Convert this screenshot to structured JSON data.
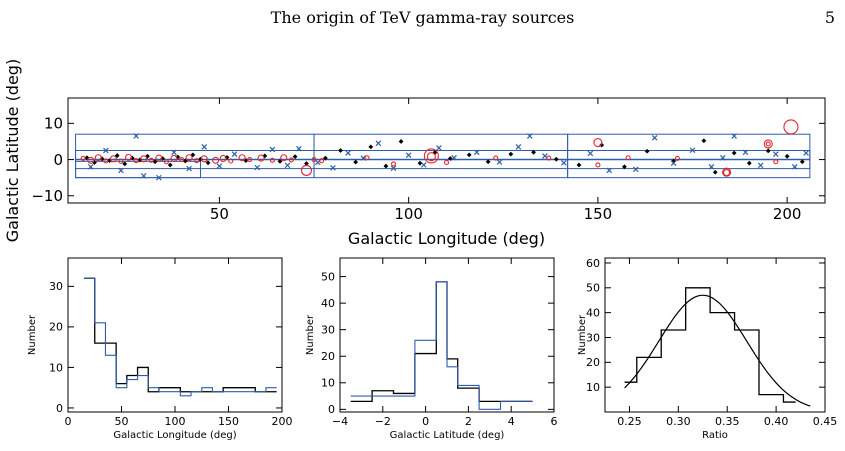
{
  "header": {
    "running_title": "The origin of TeV gamma-ray sources",
    "page_number": "5"
  },
  "colors": {
    "known": "#000000",
    "blue": "#2f5ea8",
    "red": "#e0262e",
    "frame": "#2f5ea8"
  },
  "chart_data": [
    {
      "type": "scatter",
      "xlabel": "Galactic Longitude (deg)",
      "ylabel": "Galactic Latitude (deg)",
      "xlim": [
        10,
        210
      ],
      "ylim": [
        -12,
        17
      ],
      "xticks": [
        50,
        100,
        150,
        200
      ],
      "yticks": [
        -10,
        0,
        10
      ],
      "survey_boxes": [
        {
          "l": [
            12,
            75
          ],
          "b": [
            -5,
            7
          ]
        },
        {
          "l": [
            75,
            142
          ],
          "b": [
            -5,
            7
          ]
        },
        {
          "l": [
            142,
            206
          ],
          "b": [
            -5,
            7
          ]
        },
        {
          "l": [
            12,
            45
          ],
          "b": [
            -5,
            -0.5
          ]
        },
        {
          "l": [
            12,
            206
          ],
          "b": [
            -2.5,
            2.5
          ]
        }
      ],
      "series": [
        {
          "marker": "diamond",
          "color": "#000000",
          "points": [
            [
              15,
              0.5
            ],
            [
              17,
              -0.8
            ],
            [
              19,
              0.2
            ],
            [
              21,
              -0.3
            ],
            [
              23,
              1.1
            ],
            [
              25,
              -1.2
            ],
            [
              27,
              0.4
            ],
            [
              29,
              -0.1
            ],
            [
              31,
              0.9
            ],
            [
              33,
              -0.6
            ],
            [
              35,
              0.3
            ],
            [
              37,
              -1.5
            ],
            [
              39,
              0.7
            ],
            [
              41,
              -0.4
            ],
            [
              43,
              1.3
            ],
            [
              45,
              0.1
            ],
            [
              47,
              -0.9
            ],
            [
              52,
              0.6
            ],
            [
              57,
              -0.3
            ],
            [
              62,
              1.0
            ],
            [
              66,
              -0.5
            ],
            [
              70,
              0.8
            ],
            [
              73,
              -1.1
            ],
            [
              78,
              0.4
            ],
            [
              82,
              2.5
            ],
            [
              86,
              -0.7
            ],
            [
              90,
              3.5
            ],
            [
              94,
              -1.8
            ],
            [
              98,
              5.0
            ],
            [
              103,
              -1.0
            ],
            [
              107,
              2.0
            ],
            [
              111,
              0.3
            ],
            [
              116,
              1.3
            ],
            [
              121,
              -0.6
            ],
            [
              127,
              1.5
            ],
            [
              133,
              2.0
            ],
            [
              139,
              0.1
            ],
            [
              145,
              -1.5
            ],
            [
              151,
              4.0
            ],
            [
              157,
              -2.0
            ],
            [
              163,
              2.3
            ],
            [
              170,
              -0.4
            ],
            [
              178,
              5.2
            ],
            [
              181,
              -3.5
            ],
            [
              186,
              1.8
            ],
            [
              190,
              -1.0
            ],
            [
              195,
              2.4
            ],
            [
              200,
              0.9
            ],
            [
              204,
              -0.6
            ]
          ]
        },
        {
          "marker": "cross",
          "color": "#2f5ea8",
          "points": [
            [
              16,
              -2.0
            ],
            [
              20,
              2.5
            ],
            [
              24,
              -3.0
            ],
            [
              28,
              6.5
            ],
            [
              30,
              -4.5
            ],
            [
              34,
              -5.0
            ],
            [
              38,
              2.0
            ],
            [
              42,
              -2.5
            ],
            [
              46,
              3.5
            ],
            [
              50,
              -1.8
            ],
            [
              54,
              1.5
            ],
            [
              60,
              -2.2
            ],
            [
              64,
              2.8
            ],
            [
              68,
              -1.6
            ],
            [
              71,
              3.0
            ],
            [
              76,
              -0.8
            ],
            [
              80,
              -2.3
            ],
            [
              84,
              1.8
            ],
            [
              88,
              0.4
            ],
            [
              92,
              4.5
            ],
            [
              96,
              -2.4
            ],
            [
              100,
              1.2
            ],
            [
              104,
              -1.5
            ],
            [
              108,
              3.2
            ],
            [
              112,
              0.5
            ],
            [
              118,
              2.0
            ],
            [
              124,
              -0.7
            ],
            [
              129,
              3.5
            ],
            [
              132,
              6.5
            ],
            [
              136,
              1.0
            ],
            [
              141,
              -0.9
            ],
            [
              148,
              1.7
            ],
            [
              153,
              -3.0
            ],
            [
              160,
              -2.7
            ],
            [
              165,
              6.0
            ],
            [
              170,
              -1.0
            ],
            [
              175,
              2.6
            ],
            [
              180,
              -2.0
            ],
            [
              183,
              0.5
            ],
            [
              186,
              6.5
            ],
            [
              189,
              2.0
            ],
            [
              193,
              -1.6
            ],
            [
              197,
              1.5
            ],
            [
              202,
              -2.0
            ],
            [
              205,
              1.8
            ]
          ]
        },
        {
          "marker": "open-circle",
          "color": "#e0262e",
          "points": [
            [
              14,
              0.3,
              2
            ],
            [
              16,
              -0.2,
              3
            ],
            [
              18,
              0.5,
              3
            ],
            [
              20,
              -0.4,
              2
            ],
            [
              22,
              0.2,
              3
            ],
            [
              24,
              -0.5,
              2
            ],
            [
              26,
              0.6,
              3
            ],
            [
              28,
              -0.3,
              2
            ],
            [
              30,
              0.2,
              3
            ],
            [
              32,
              -0.2,
              2
            ],
            [
              34,
              0.4,
              3
            ],
            [
              36,
              -0.6,
              2
            ],
            [
              38,
              0.3,
              3
            ],
            [
              40,
              0.0,
              2
            ],
            [
              42,
              0.5,
              3
            ],
            [
              44,
              -0.3,
              2
            ],
            [
              46,
              0.2,
              3
            ],
            [
              49,
              -0.2,
              3
            ],
            [
              51,
              0.3,
              3
            ],
            [
              53,
              -0.4,
              2
            ],
            [
              56,
              0.5,
              3
            ],
            [
              58,
              0.0,
              2
            ],
            [
              61,
              0.4,
              3
            ],
            [
              64,
              -0.2,
              2
            ],
            [
              67,
              0.5,
              3
            ],
            [
              69,
              -0.1,
              2
            ],
            [
              73,
              -3.0,
              5
            ],
            [
              75,
              0.0,
              2
            ],
            [
              77,
              -0.3,
              2
            ],
            [
              89,
              0.5,
              2
            ],
            [
              96,
              -1.2,
              2
            ],
            [
              106,
              1.0,
              7
            ],
            [
              106,
              0.8,
              4
            ],
            [
              110,
              -0.8,
              2
            ],
            [
              123,
              0.4,
              2
            ],
            [
              137,
              0.4,
              2
            ],
            [
              150,
              4.7,
              4
            ],
            [
              150,
              -1.5,
              2
            ],
            [
              158,
              0.5,
              2
            ],
            [
              171,
              0.3,
              2
            ],
            [
              184,
              -3.5,
              4
            ],
            [
              184,
              -3.6,
              3
            ],
            [
              195,
              4.3,
              4
            ],
            [
              195,
              4.3,
              2
            ],
            [
              197,
              -0.6,
              2
            ],
            [
              201,
              9.0,
              7
            ]
          ]
        }
      ]
    },
    {
      "type": "histogram",
      "xlabel": "Galactic Longitude (deg)",
      "ylabel": "Number",
      "xlim": [
        0,
        200
      ],
      "ylim": [
        -1,
        37
      ],
      "xticks": [
        0,
        50,
        100,
        150,
        200
      ],
      "yticks": [
        0,
        10,
        20,
        30
      ],
      "series": [
        {
          "color": "#000000",
          "edges": [
            15,
            25,
            35,
            45,
            55,
            65,
            75,
            85,
            95,
            105,
            115,
            125,
            135,
            145,
            155,
            165,
            175,
            185,
            195
          ],
          "counts": [
            32,
            16,
            16,
            6,
            8,
            10,
            4,
            5,
            5,
            4,
            4,
            4,
            4,
            5,
            5,
            5,
            4,
            4
          ]
        },
        {
          "color": "#2f5ea8",
          "edges": [
            15,
            25,
            35,
            45,
            55,
            65,
            75,
            85,
            95,
            105,
            115,
            125,
            135,
            145,
            155,
            165,
            175,
            185,
            195
          ],
          "counts": [
            32,
            21,
            13,
            5,
            7,
            8,
            5,
            4,
            4,
            3,
            4,
            5,
            4,
            4,
            4,
            4,
            4,
            5
          ]
        }
      ]
    },
    {
      "type": "histogram",
      "xlabel": "Galactic Latitude (deg)",
      "ylabel": "Number",
      "xlim": [
        -4,
        6
      ],
      "ylim": [
        -1,
        57
      ],
      "xticks": [
        -4,
        -2,
        0,
        2,
        4,
        6
      ],
      "yticks": [
        0,
        10,
        20,
        30,
        40,
        50
      ],
      "series": [
        {
          "color": "#000000",
          "edges": [
            -3.5,
            -2.5,
            -1.5,
            -0.5,
            0.5,
            1.0,
            1.5,
            2.5,
            3.5,
            5.0
          ],
          "counts": [
            3,
            7,
            6,
            21,
            48,
            19,
            8,
            3,
            3
          ]
        },
        {
          "color": "#2f5ea8",
          "edges": [
            -3.5,
            -2.5,
            -1.5,
            -0.5,
            0.5,
            1.0,
            1.5,
            2.5,
            3.5,
            5.0
          ],
          "counts": [
            5,
            5,
            5,
            26,
            48,
            16,
            9,
            0,
            3
          ]
        }
      ]
    },
    {
      "type": "histogram",
      "xlabel": "Ratio",
      "ylabel": "Number",
      "xlim": [
        0.225,
        0.45
      ],
      "ylim": [
        0,
        62
      ],
      "xticks": [
        0.25,
        0.3,
        0.35,
        0.4,
        0.45
      ],
      "yticks": [
        10,
        20,
        30,
        40,
        50,
        60
      ],
      "series": [
        {
          "color": "#000000",
          "edges": [
            0.245,
            0.2575,
            0.27,
            0.2825,
            0.295,
            0.3075,
            0.32,
            0.3325,
            0.345,
            0.3575,
            0.37,
            0.3825,
            0.395,
            0.4075,
            0.42
          ],
          "counts": [
            12,
            22,
            22,
            33,
            33,
            50,
            50,
            40,
            40,
            33,
            33,
            7,
            7,
            4
          ]
        }
      ],
      "fit": {
        "type": "gaussian",
        "amplitude": 47,
        "mean": 0.325,
        "sigma": 0.045,
        "x": [
          0.245,
          0.435
        ]
      }
    }
  ]
}
